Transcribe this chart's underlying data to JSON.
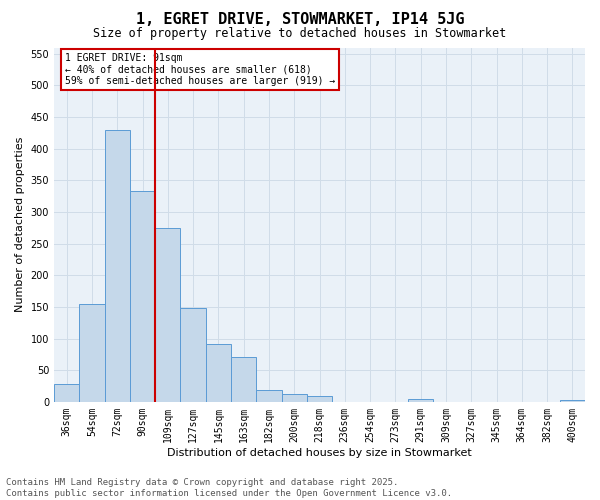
{
  "title": "1, EGRET DRIVE, STOWMARKET, IP14 5JG",
  "subtitle": "Size of property relative to detached houses in Stowmarket",
  "xlabel": "Distribution of detached houses by size in Stowmarket",
  "ylabel": "Number of detached properties",
  "categories": [
    "36sqm",
    "54sqm",
    "72sqm",
    "90sqm",
    "109sqm",
    "127sqm",
    "145sqm",
    "163sqm",
    "182sqm",
    "200sqm",
    "218sqm",
    "236sqm",
    "254sqm",
    "273sqm",
    "291sqm",
    "309sqm",
    "327sqm",
    "345sqm",
    "364sqm",
    "382sqm",
    "400sqm"
  ],
  "values": [
    28,
    155,
    430,
    333,
    274,
    148,
    91,
    71,
    18,
    13,
    10,
    0,
    0,
    0,
    4,
    0,
    0,
    0,
    0,
    0,
    3
  ],
  "bar_color": "#c5d8ea",
  "bar_edge_color": "#5b9bd5",
  "grid_color": "#d0dce8",
  "background_color": "#eaf1f8",
  "vline_color": "#cc0000",
  "annotation_title": "1 EGRET DRIVE: 91sqm",
  "annotation_line1": "← 40% of detached houses are smaller (618)",
  "annotation_line2": "59% of semi-detached houses are larger (919) →",
  "annotation_box_color": "#cc0000",
  "annotation_bg": "#ffffff",
  "ylim": [
    0,
    560
  ],
  "yticks": [
    0,
    50,
    100,
    150,
    200,
    250,
    300,
    350,
    400,
    450,
    500,
    550
  ],
  "footer_line1": "Contains HM Land Registry data © Crown copyright and database right 2025.",
  "footer_line2": "Contains public sector information licensed under the Open Government Licence v3.0.",
  "title_fontsize": 11,
  "subtitle_fontsize": 8.5,
  "axis_label_fontsize": 8,
  "tick_fontsize": 7,
  "annotation_fontsize": 7,
  "footer_fontsize": 6.5
}
